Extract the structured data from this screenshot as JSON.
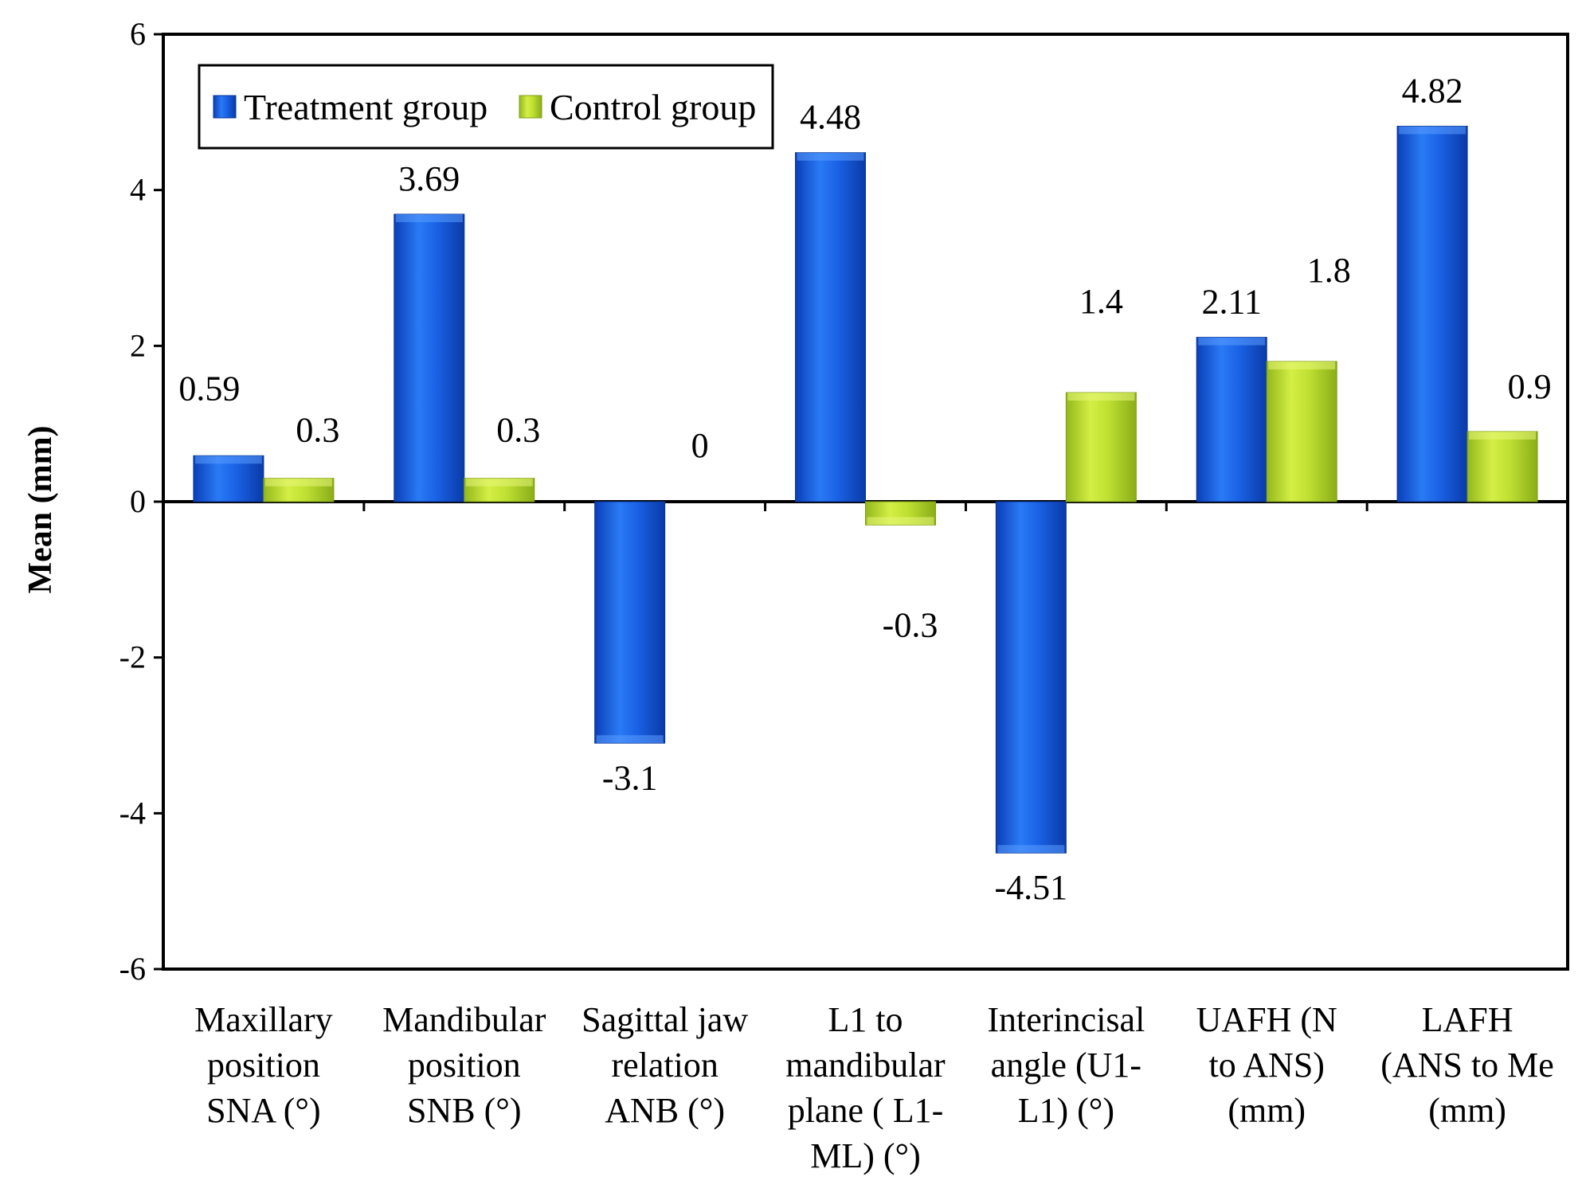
{
  "chart_data": {
    "type": "bar",
    "title": "",
    "xlabel": "",
    "ylabel": "Mean (mm)",
    "ylim": [
      -6,
      6
    ],
    "yticks": [
      -6,
      -4,
      -2,
      0,
      2,
      4,
      6
    ],
    "grid": false,
    "legend_position": "top-left",
    "categories": [
      [
        "Maxillary",
        "position",
        "SNA (°)"
      ],
      [
        "Mandibular",
        "position",
        "SNB (°)"
      ],
      [
        "Sagittal jaw",
        "relation",
        "ANB (°)"
      ],
      [
        "L1 to",
        "mandibular",
        "plane ( L1-",
        "ML) (°)"
      ],
      [
        "Interincisal",
        "angle  (U1-",
        "L1) (°)"
      ],
      [
        "UAFH (N",
        "to ANS)",
        "(mm)"
      ],
      [
        "LAFH",
        "(ANS to Me",
        "(mm)"
      ]
    ],
    "series": [
      {
        "name": "Treatment group",
        "color": "#1a5fe0",
        "values": [
          0.59,
          3.69,
          -3.1,
          4.48,
          -4.51,
          2.11,
          4.82
        ],
        "labels": [
          "0.59",
          "3.69",
          "-3.1",
          "4.48",
          "-4.51",
          "2.11",
          "4.82"
        ]
      },
      {
        "name": "Control group",
        "color": "#b5d92b",
        "values": [
          0.3,
          0.3,
          0,
          -0.3,
          1.4,
          1.8,
          0.9
        ],
        "labels": [
          "0.3",
          "0.3",
          "0",
          "-0.3",
          "1.4",
          "1.8",
          "0.9"
        ]
      }
    ]
  }
}
